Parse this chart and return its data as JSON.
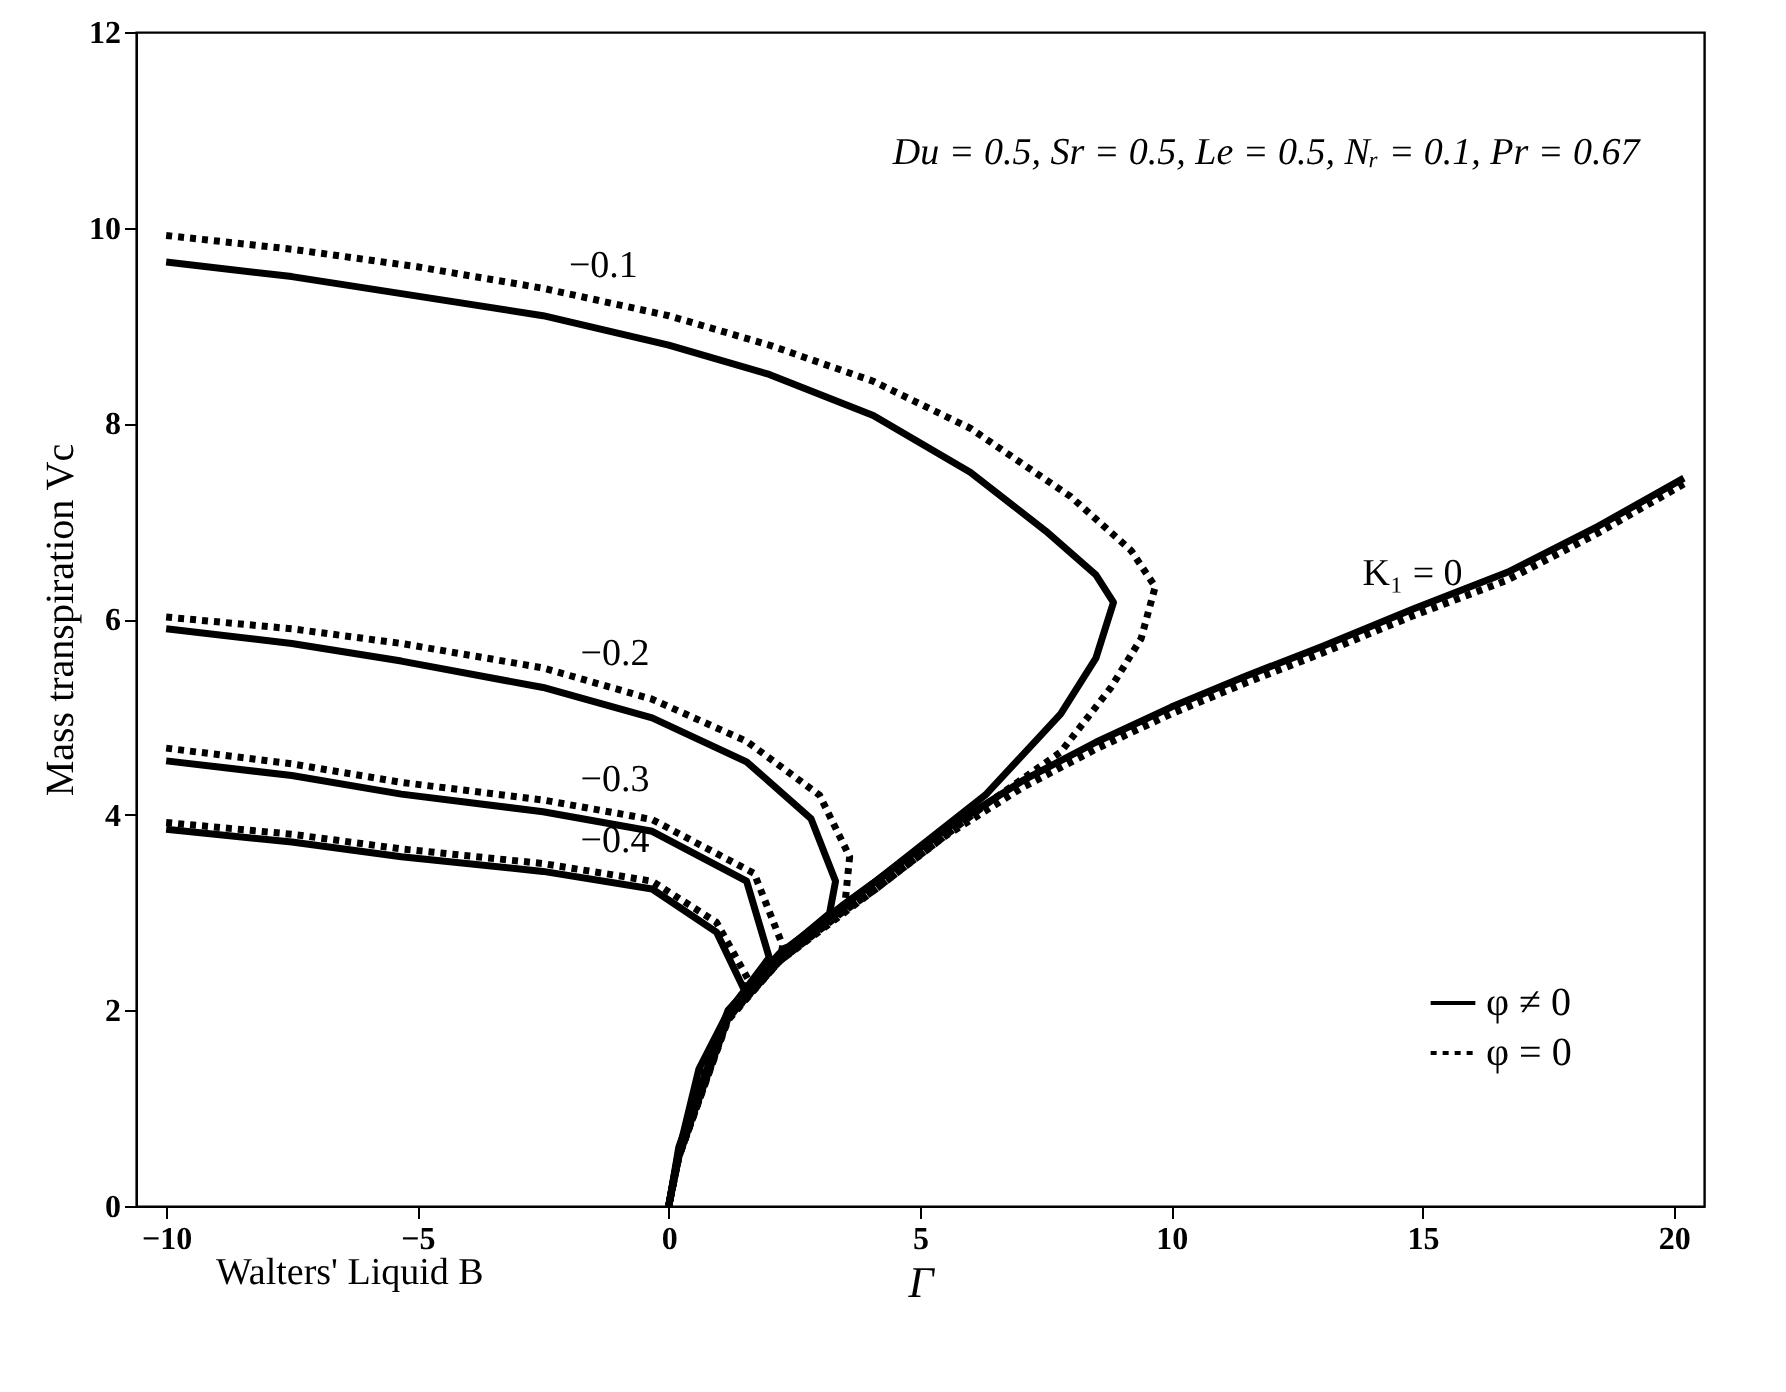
{
  "chart_data": {
    "type": "line",
    "xlabel": "Γ",
    "ylabel": "Mass transpiration Vc",
    "xlim": [
      -10.6,
      20.6
    ],
    "ylim": [
      0,
      12
    ],
    "xticks": [
      -10,
      -5,
      0,
      5,
      10,
      15,
      20
    ],
    "yticks": [
      0,
      2,
      4,
      6,
      8,
      10,
      12
    ],
    "grid": false,
    "legend": "bottom right",
    "marker": "none",
    "series": [
      {
        "name": "φ ≠ 0",
        "color": "#000000",
        "line_style": "solid",
        "x": [
          -10,
          -7.5,
          -5,
          -2.5,
          0,
          2,
          4.07,
          6,
          7.5,
          8.5,
          8.85,
          8.5,
          7.8,
          6.3,
          4.07,
          2.2,
          1.18,
          0.2,
          0
        ],
        "values": [
          9.65,
          9.5,
          9.3,
          9.1,
          8.8,
          8.5,
          8.08,
          7.5,
          6.9,
          6.45,
          6.17,
          5.6,
          5.03,
          4.2,
          3.3,
          2.58,
          2.0,
          0.6,
          0
        ]
      },
      {
        "name": "φ = 0",
        "color": "#000000",
        "line_style": "dotted",
        "x": [
          -10,
          -7.5,
          -5,
          -2.5,
          0,
          2,
          4.07,
          6,
          8,
          9.2,
          9.68,
          9.4,
          8.8,
          7.8,
          6.3,
          4.07,
          2.2,
          1.18,
          0.2,
          0
        ],
        "values": [
          9.92,
          9.78,
          9.6,
          9.38,
          9.1,
          8.8,
          8.43,
          7.95,
          7.25,
          6.7,
          6.33,
          5.8,
          5.3,
          4.64,
          4.1,
          3.22,
          2.5,
          1.9,
          0.5,
          0
        ]
      },
      {
        "color": "#000000",
        "line_style": "solid",
        "x": [
          -10,
          -7.5,
          -5.32,
          -2.5,
          -0.33,
          1.55,
          2.83,
          3.32,
          3.2,
          2.2,
          1.18,
          0.2,
          0
        ],
        "values": [
          5.9,
          5.75,
          5.57,
          5.3,
          4.99,
          4.54,
          3.96,
          3.32,
          2.99,
          2.56,
          1.98,
          0.55,
          0
        ]
      },
      {
        "color": "#000000",
        "line_style": "dotted",
        "x": [
          -10,
          -7.5,
          -5.32,
          -2.5,
          -0.33,
          1.55,
          3.0,
          3.6,
          3.5,
          2.2,
          1.18,
          0.2,
          0
        ],
        "values": [
          6.02,
          5.9,
          5.75,
          5.5,
          5.18,
          4.75,
          4.2,
          3.57,
          3.05,
          2.5,
          1.92,
          0.5,
          0
        ]
      },
      {
        "color": "#000000",
        "line_style": "solid",
        "x": [
          -10,
          -7.5,
          -5.32,
          -2.5,
          -0.33,
          1.55,
          2.0,
          1.18,
          0.2,
          0
        ],
        "values": [
          4.55,
          4.4,
          4.21,
          4.03,
          3.83,
          3.32,
          2.54,
          1.98,
          0.55,
          0
        ]
      },
      {
        "color": "#000000",
        "line_style": "dotted",
        "x": [
          -10,
          -7.5,
          -5.32,
          -2.5,
          -0.33,
          1.7,
          2.27,
          2.2,
          1.18,
          0.2,
          0
        ],
        "values": [
          4.68,
          4.52,
          4.33,
          4.15,
          3.95,
          3.4,
          2.66,
          2.5,
          1.92,
          0.5,
          0
        ]
      },
      {
        "color": "#000000",
        "line_style": "solid",
        "x": [
          -10,
          -7.5,
          -5.32,
          -2.5,
          -0.33,
          0.95,
          1.55,
          1.18,
          0.6,
          0.2,
          0
        ],
        "values": [
          3.85,
          3.72,
          3.57,
          3.42,
          3.24,
          2.8,
          2.16,
          1.98,
          1.4,
          0.55,
          0
        ]
      },
      {
        "color": "#000000",
        "line_style": "dotted",
        "x": [
          -10,
          -7.5,
          -5.32,
          -2.5,
          -0.33,
          0.95,
          1.6,
          1.18,
          0.6,
          0.2,
          0
        ],
        "values": [
          3.92,
          3.8,
          3.65,
          3.5,
          3.32,
          2.9,
          2.3,
          1.92,
          1.35,
          0.5,
          0
        ]
      },
      {
        "color": "#000000",
        "line_style": "solid",
        "x": [
          0,
          0.2,
          0.5,
          1.18,
          2.2,
          3.45,
          4.07,
          5.5,
          7.05,
          8.5,
          10,
          11.5,
          13,
          14.8,
          16.7,
          18.5,
          20.2
        ],
        "values": [
          0,
          0.55,
          1.0,
          1.98,
          2.56,
          3.07,
          3.3,
          3.85,
          4.35,
          4.74,
          5.1,
          5.42,
          5.72,
          6.1,
          6.48,
          6.95,
          7.44
        ]
      },
      {
        "color": "#000000",
        "line_style": "dotted",
        "x": [
          0,
          0.2,
          0.5,
          1.18,
          2.2,
          3.45,
          4.07,
          5.5,
          7.05,
          8.5,
          10,
          11.5,
          13,
          14.8,
          16.7,
          18.5,
          20.2
        ],
        "values": [
          0,
          0.5,
          0.95,
          1.92,
          2.5,
          3.0,
          3.22,
          3.78,
          4.28,
          4.67,
          5.03,
          5.35,
          5.65,
          6.03,
          6.4,
          6.88,
          7.38
        ]
      }
    ],
    "annotations": [
      "Du = 0.5, Sr = 0.5, Le = 0.5, Nᵣ = 0.1, Pr = 0.67",
      "Walters' Liquid B",
      {
        "text": "−0.1",
        "x": -1.3,
        "y": 9.25
      },
      {
        "text": "−0.2",
        "x": -1.07,
        "y": 5.28
      },
      {
        "text": "−0.3",
        "x": -1.07,
        "y": 4.0
      },
      {
        "text": "−0.4",
        "x": -1.07,
        "y": 3.37
      },
      {
        "text": "K₁ = 0",
        "x": 14.8,
        "y": 6.1
      }
    ]
  }
}
